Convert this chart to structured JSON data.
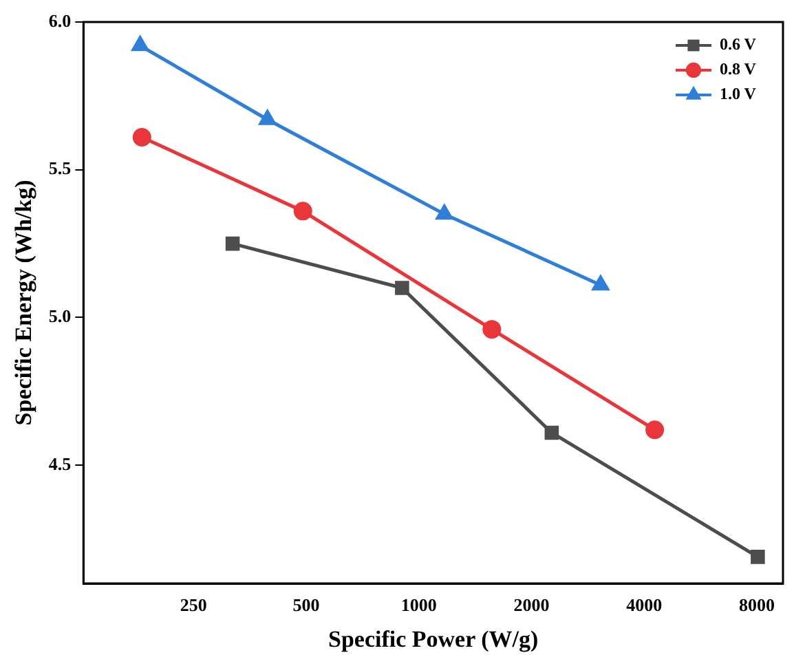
{
  "chart_data": {
    "type": "line",
    "xlabel": "Specific Power (W/g)",
    "ylabel": "Specific Energy (Wh/kg)",
    "log": "x",
    "xlim": [
      127,
      9400
    ],
    "xticks": [
      250,
      500,
      1000,
      2000,
      4000,
      8000
    ],
    "ylim": [
      4.1,
      6.0
    ],
    "yticks": [
      4.5,
      {
        "value": 5,
        "label": "5.0"
      },
      5.5,
      {
        "value": 6,
        "label": "6.0"
      }
    ],
    "grid": false,
    "legend": "top right",
    "line_style": "solid",
    "series": [
      {
        "name": "0.6 V",
        "color": "#4d4d4d",
        "marker": "square",
        "x": [
          318,
          902,
          2265,
          8050
        ],
        "values": [
          5.25,
          5.1,
          4.61,
          4.19
        ]
      },
      {
        "name": "0.8 V",
        "color": "#e8363b",
        "marker": "circle",
        "x": [
          182,
          490,
          1567,
          4270
        ],
        "values": [
          5.61,
          5.36,
          4.96,
          4.62
        ]
      },
      {
        "name": "1.0 V",
        "color": "#2f7fd9",
        "marker": "triangle",
        "x": [
          180,
          394,
          1170,
          3060
        ],
        "values": [
          5.92,
          5.67,
          5.35,
          5.11
        ]
      }
    ]
  }
}
